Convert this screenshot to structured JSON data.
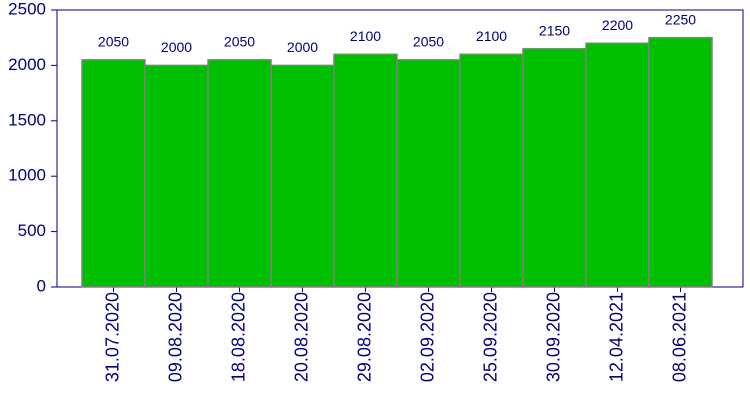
{
  "chart_data": {
    "type": "bar",
    "categories": [
      "31.07.2020",
      "09.08.2020",
      "18.08.2020",
      "20.08.2020",
      "29.08.2020",
      "02.09.2020",
      "25.09.2020",
      "30.09.2020",
      "12.04.2021",
      "08.06.2021"
    ],
    "values": [
      2050,
      2000,
      2050,
      2000,
      2100,
      2050,
      2100,
      2150,
      2200,
      2250
    ],
    "color": "#00bf00",
    "ylim": [
      0,
      2500
    ],
    "yticks": [
      0,
      500,
      1000,
      1500,
      2000,
      2500
    ],
    "grid": false
  }
}
